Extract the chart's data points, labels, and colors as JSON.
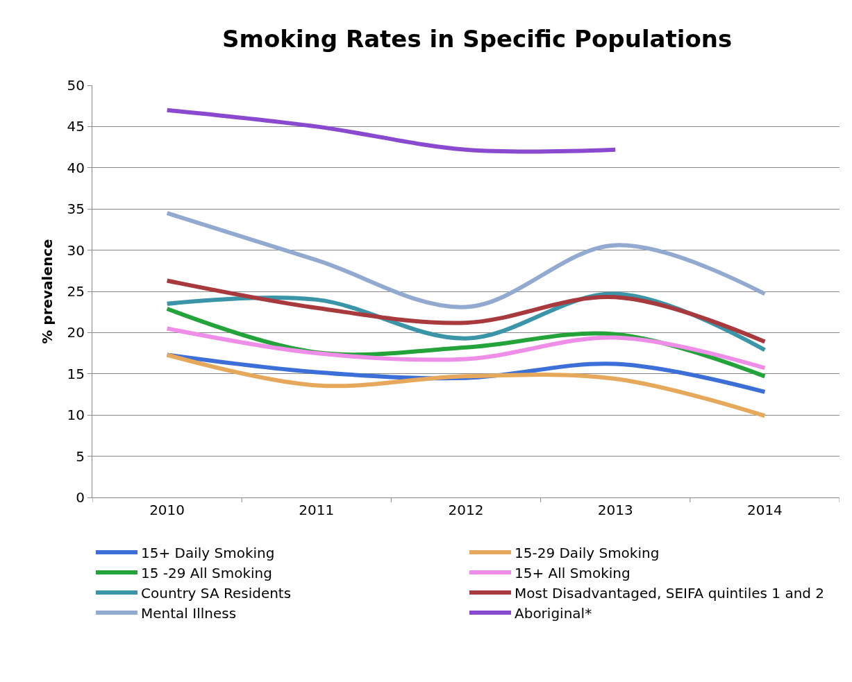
{
  "chart_data": {
    "type": "line",
    "title": "Smoking Rates in Specific Populations",
    "ylabel": "% prevalence",
    "categories": [
      "2010",
      "2011",
      "2012",
      "2013",
      "2014"
    ],
    "series": [
      {
        "name": "15+ Daily Smoking",
        "color": "#3c6fd8",
        "values": [
          17.3,
          15.2,
          14.5,
          16.2,
          12.8
        ]
      },
      {
        "name": "15-29 Daily Smoking",
        "color": "#e6a85a",
        "values": [
          17.3,
          13.6,
          14.7,
          14.4,
          9.9
        ]
      },
      {
        "name": "15 -29 All Smoking",
        "color": "#24a33a",
        "values": [
          22.9,
          17.6,
          18.2,
          19.8,
          14.7
        ]
      },
      {
        "name": "15+ All Smoking",
        "color": "#ee8ee8",
        "values": [
          20.5,
          17.5,
          16.8,
          19.4,
          15.7
        ]
      },
      {
        "name": "Country SA Residents",
        "color": "#3b95a8",
        "values": [
          23.5,
          24.0,
          19.3,
          24.7,
          17.9
        ]
      },
      {
        "name": "Most Disadvantaged, SEIFA quintiles 1 and 2",
        "color": "#a83a3e",
        "values": [
          26.3,
          23.0,
          21.2,
          24.3,
          18.9
        ]
      },
      {
        "name": "Mental Illness",
        "color": "#92a9d0",
        "values": [
          34.5,
          28.8,
          23.1,
          30.6,
          24.7
        ]
      },
      {
        "name": "Aboriginal*",
        "color": "#8a4ad0",
        "values": [
          47.0,
          45.0,
          42.2,
          42.2,
          null
        ]
      }
    ],
    "ylim": [
      0,
      50
    ],
    "yticks": [
      0,
      5,
      10,
      15,
      20,
      25,
      30,
      35,
      40,
      45,
      50
    ],
    "grid": "y",
    "legend": "bottom",
    "marker": "none",
    "line_style": "solid"
  }
}
